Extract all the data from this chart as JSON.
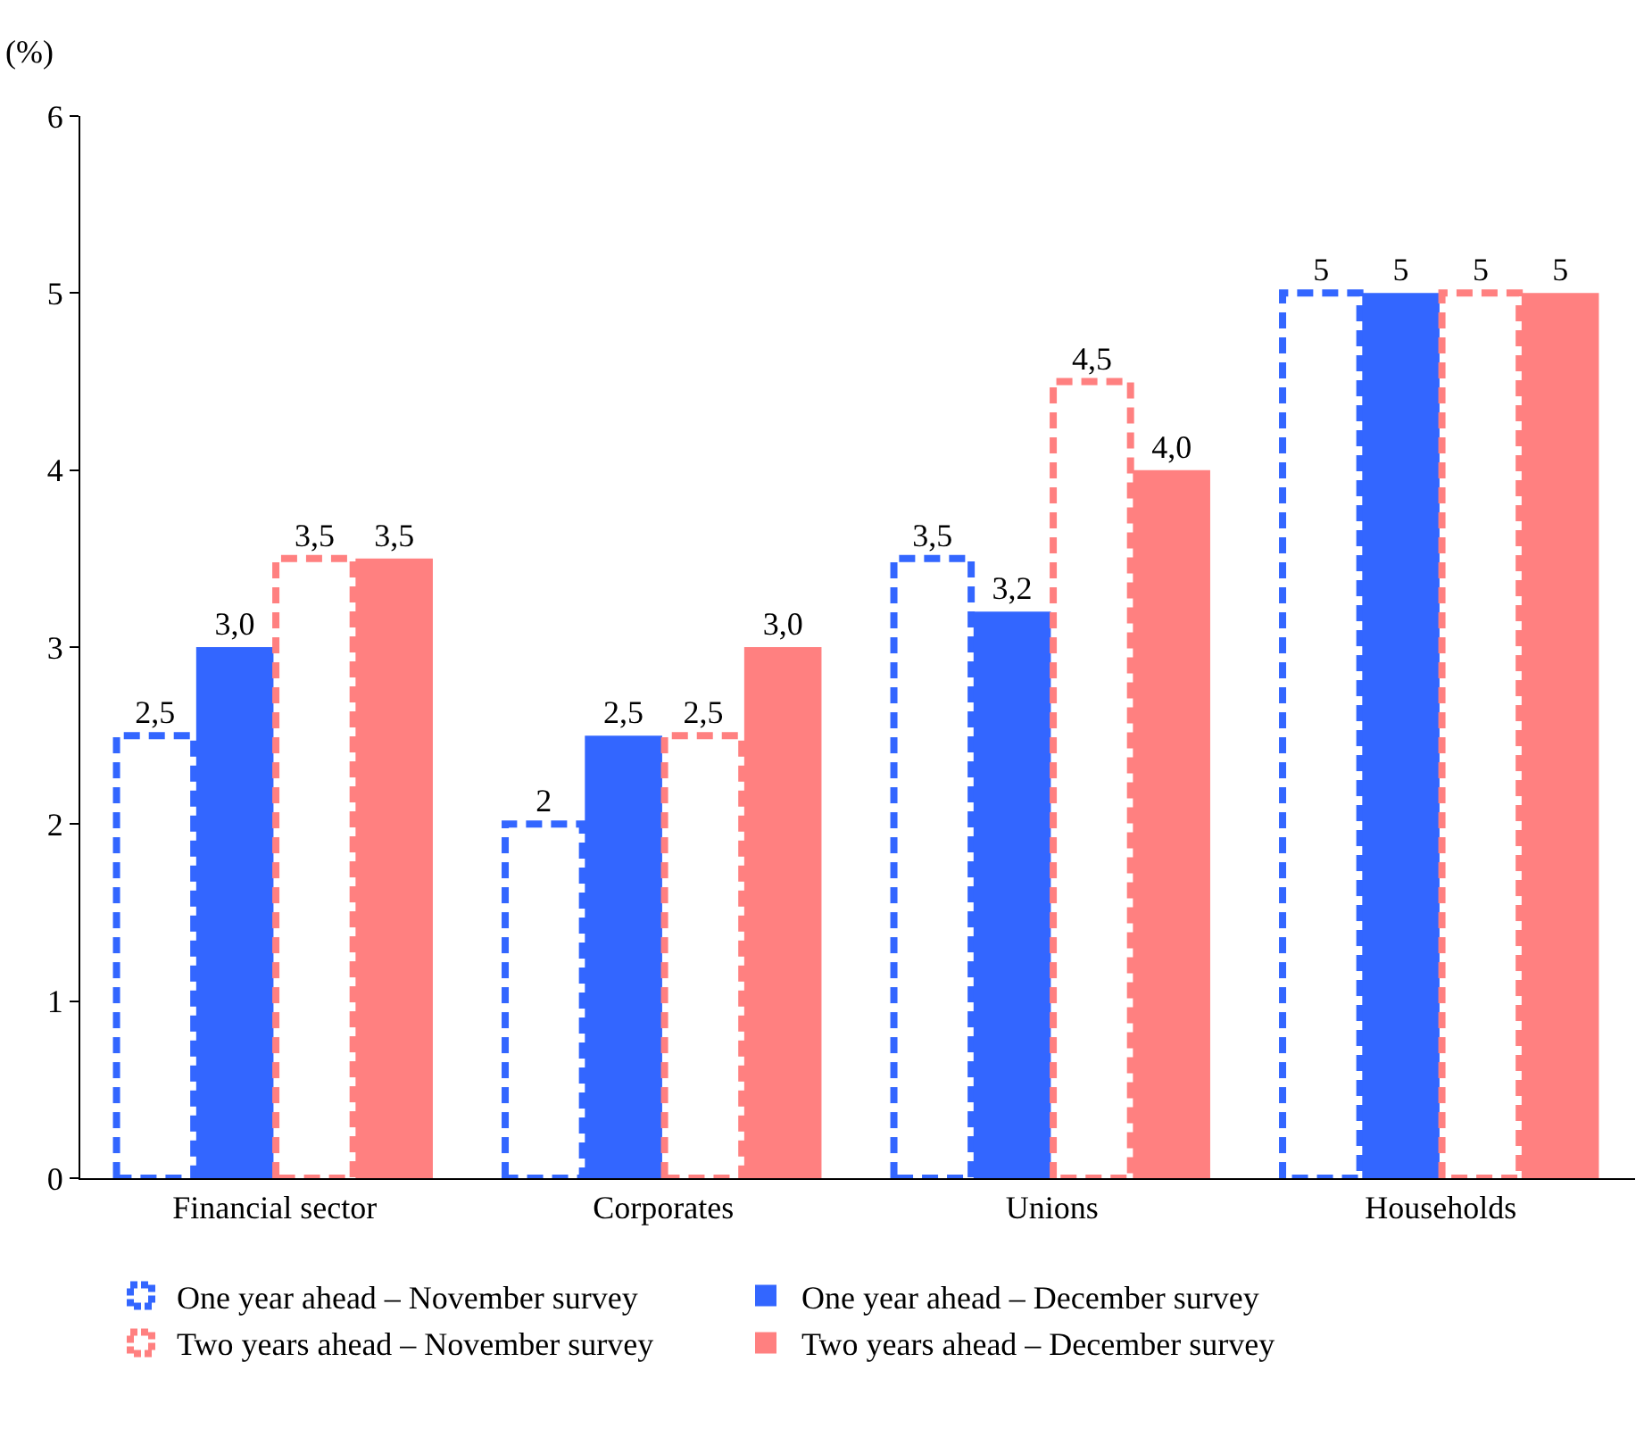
{
  "chart_data": {
    "type": "bar",
    "ylabel": "(%)",
    "categories": [
      "Financial sector",
      "Corporates",
      "Unions",
      "Households"
    ],
    "series": [
      {
        "name": "One year ahead – November survey",
        "color": "#3366ff",
        "line_style": "dashed",
        "values": [
          2.5,
          2,
          3.5,
          5
        ],
        "value_labels": [
          "2,5",
          "2",
          "3,5",
          "5"
        ]
      },
      {
        "name": "One year ahead – December survey",
        "color": "#3366ff",
        "values": [
          3.0,
          2.5,
          3.2,
          5
        ],
        "value_labels": [
          "3,0",
          "2,5",
          "3,2",
          "5"
        ]
      },
      {
        "name": "Two years ahead – November survey",
        "color": "#ff8080",
        "line_style": "dashed",
        "values": [
          3.5,
          2.5,
          4.5,
          5
        ],
        "value_labels": [
          "3,5",
          "2,5",
          "4,5",
          "5"
        ]
      },
      {
        "name": "Two years ahead – December survey",
        "color": "#ff8080",
        "values": [
          3.5,
          3.0,
          4.0,
          5
        ],
        "value_labels": [
          "3,5",
          "3,0",
          "4,0",
          "5"
        ]
      }
    ],
    "ylim": [
      0,
      6
    ],
    "yticks": [
      0,
      1,
      2,
      3,
      4,
      5,
      6
    ],
    "grid": false,
    "legend": "bottom"
  }
}
